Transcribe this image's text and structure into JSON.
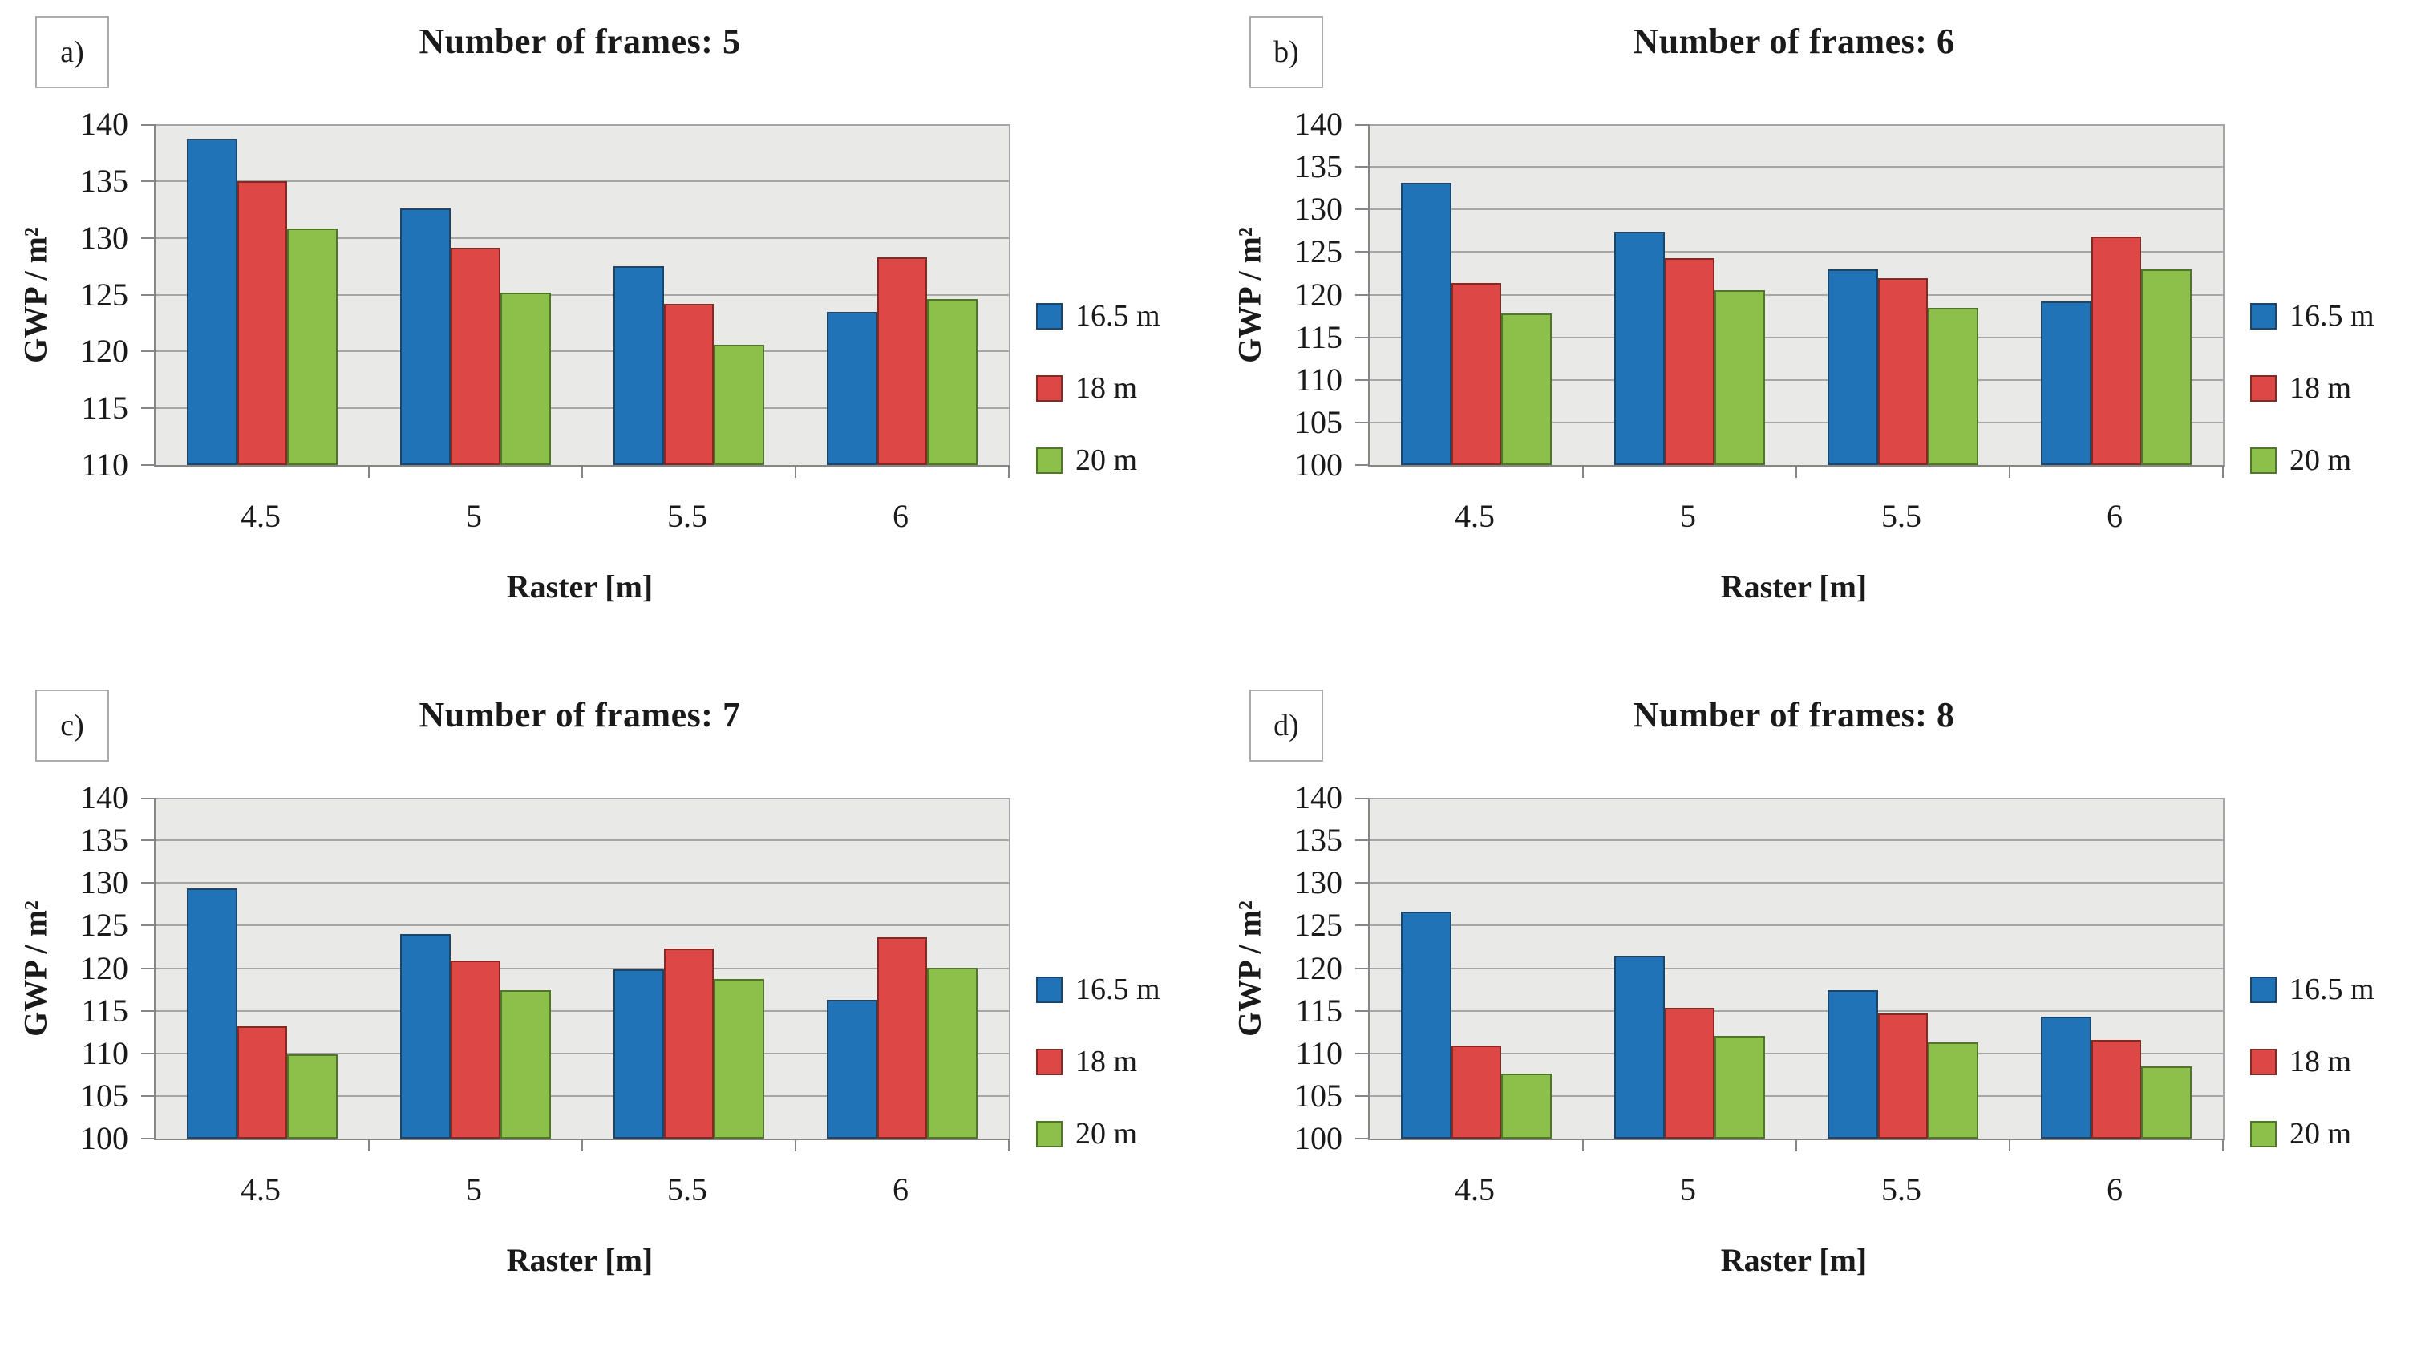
{
  "style": {
    "plot_background": "#e9e9e7",
    "gridline_color": "#a6a6a6",
    "axis_color": "#868686",
    "panel_box_border": "#ababab",
    "series_blue": "#2173b8",
    "series_red": "#dd4745",
    "series_green": "#8cc04b"
  },
  "chart_data": [
    {
      "type": "bar",
      "panel_label": "a)",
      "title": "Number of frames: 5",
      "xlabel": "Raster [m]",
      "ylabel": "GWP / m²",
      "ymin": 110,
      "ymax": 140,
      "ystep": 5,
      "yticks": [
        110,
        115,
        120,
        125,
        130,
        135,
        140
      ],
      "categories": [
        "4.5",
        "5",
        "5.5",
        "6"
      ],
      "grid": "horizontal",
      "legend_position": "right",
      "series": [
        {
          "name": "16.5 m",
          "color": "#2173b8",
          "border": "#1e4466",
          "values": [
            138.7,
            132.6,
            127.5,
            123.5
          ]
        },
        {
          "name": "18 m",
          "color": "#dd4745",
          "border": "#832a24",
          "values": [
            135.0,
            129.1,
            124.2,
            128.3
          ]
        },
        {
          "name": "20 m",
          "color": "#8cc04b",
          "border": "#50762a",
          "values": [
            130.8,
            125.2,
            120.6,
            124.6
          ]
        }
      ]
    },
    {
      "type": "bar",
      "panel_label": "b)",
      "title": "Number of frames: 6",
      "xlabel": "Raster [m]",
      "ylabel": "GWP / m²",
      "ymin": 100,
      "ymax": 140,
      "ystep": 5,
      "yticks": [
        100,
        105,
        110,
        115,
        120,
        125,
        130,
        135,
        140
      ],
      "categories": [
        "4.5",
        "5",
        "5.5",
        "6"
      ],
      "grid": "horizontal",
      "legend_position": "right",
      "series": [
        {
          "name": "16.5 m",
          "color": "#2173b8",
          "border": "#1e4466",
          "values": [
            133.1,
            127.4,
            123.0,
            119.2
          ]
        },
        {
          "name": "18 m",
          "color": "#dd4745",
          "border": "#832a24",
          "values": [
            121.4,
            124.3,
            121.9,
            126.8
          ]
        },
        {
          "name": "20 m",
          "color": "#8cc04b",
          "border": "#50762a",
          "values": [
            117.8,
            120.5,
            118.4,
            123.0
          ]
        }
      ]
    },
    {
      "type": "bar",
      "panel_label": "c)",
      "title": "Number of frames: 7",
      "xlabel": "Raster [m]",
      "ylabel": "GWP / m²",
      "ymin": 100,
      "ymax": 140,
      "ystep": 5,
      "yticks": [
        100,
        105,
        110,
        115,
        120,
        125,
        130,
        135,
        140
      ],
      "categories": [
        "4.5",
        "5",
        "5.5",
        "6"
      ],
      "grid": "horizontal",
      "legend_position": "right",
      "series": [
        {
          "name": "16.5 m",
          "color": "#2173b8",
          "border": "#1e4466",
          "values": [
            129.4,
            124.0,
            119.9,
            116.3
          ]
        },
        {
          "name": "18 m",
          "color": "#dd4745",
          "border": "#832a24",
          "values": [
            113.2,
            120.9,
            122.3,
            123.6
          ]
        },
        {
          "name": "20 m",
          "color": "#8cc04b",
          "border": "#50762a",
          "values": [
            109.9,
            117.4,
            118.7,
            120.0
          ]
        }
      ]
    },
    {
      "type": "bar",
      "panel_label": "d)",
      "title": "Number of frames: 8",
      "xlabel": "Raster [m]",
      "ylabel": "GWP / m²",
      "ymin": 100,
      "ymax": 140,
      "ystep": 5,
      "yticks": [
        100,
        105,
        110,
        115,
        120,
        125,
        130,
        135,
        140
      ],
      "categories": [
        "4.5",
        "5",
        "5.5",
        "6"
      ],
      "grid": "horizontal",
      "legend_position": "right",
      "series": [
        {
          "name": "16.5 m",
          "color": "#2173b8",
          "border": "#1e4466",
          "values": [
            126.6,
            121.5,
            117.4,
            114.3
          ]
        },
        {
          "name": "18 m",
          "color": "#dd4745",
          "border": "#832a24",
          "values": [
            110.9,
            115.3,
            114.7,
            111.6
          ]
        },
        {
          "name": "20 m",
          "color": "#8cc04b",
          "border": "#50762a",
          "values": [
            107.6,
            112.0,
            111.3,
            108.5
          ]
        }
      ]
    }
  ]
}
